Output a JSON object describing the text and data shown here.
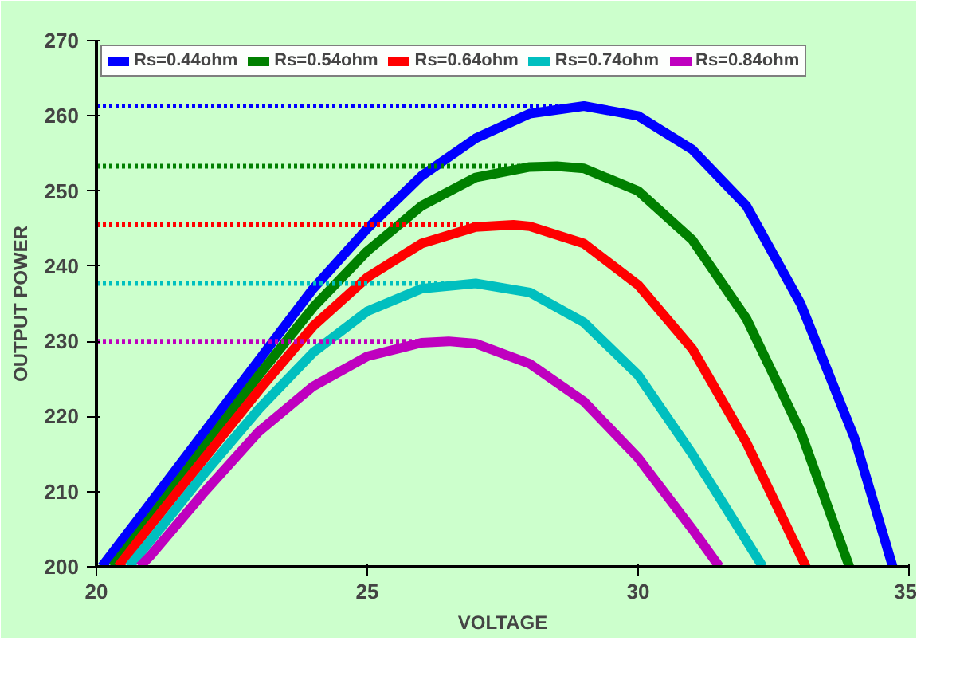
{
  "chart_data": {
    "type": "line",
    "xlabel": "VOLTAGE",
    "ylabel": "OUTPUT POWER",
    "xlim": [
      20,
      35
    ],
    "ylim": [
      200,
      270
    ],
    "xticks": [
      20,
      25,
      30,
      35
    ],
    "yticks": [
      200,
      210,
      220,
      230,
      240,
      250,
      260,
      270
    ],
    "grid": false,
    "legend": "top left",
    "line_style": "solid",
    "marker": "none",
    "series": [
      {
        "name": "Rs=0.44ohm",
        "color": "#0000ff",
        "x": [
          20.1,
          21,
          22,
          23,
          24,
          25,
          26,
          27,
          28,
          29,
          30,
          31,
          32,
          33,
          34,
          34.7
        ],
        "values": [
          200,
          208.5,
          218,
          227.5,
          237,
          245,
          252,
          257,
          260.3,
          261.3,
          260,
          255.5,
          248,
          235,
          217,
          200
        ]
      },
      {
        "name": "Rs=0.54ohm",
        "color": "#008000",
        "x": [
          20.3,
          21,
          22,
          23,
          24,
          25,
          26,
          27,
          28,
          28.5,
          29,
          30,
          31,
          32,
          33,
          33.9
        ],
        "values": [
          200,
          206.5,
          216,
          225.5,
          234.5,
          242,
          248,
          251.8,
          253.2,
          253.3,
          253,
          250,
          243.5,
          233,
          218,
          200
        ]
      },
      {
        "name": "Rs=0.64ohm",
        "color": "#ff0000",
        "x": [
          20.4,
          21,
          22,
          23,
          24,
          25,
          26,
          27,
          27.7,
          28,
          29,
          30,
          31,
          32,
          33.1
        ],
        "values": [
          200,
          205.5,
          214.5,
          223.5,
          232,
          238.5,
          243,
          245.2,
          245.5,
          245.3,
          243,
          237.5,
          229,
          216.5,
          200
        ]
      },
      {
        "name": "Rs=0.74ohm",
        "color": "#00bfbf",
        "x": [
          20.6,
          21,
          22,
          23,
          24,
          25,
          26,
          27,
          28,
          29,
          30,
          31,
          32.3
        ],
        "values": [
          200,
          203.5,
          212.5,
          221,
          228.5,
          234,
          237,
          237.7,
          236.5,
          232.5,
          225.5,
          215,
          200
        ]
      },
      {
        "name": "Rs=0.84ohm",
        "color": "#bf00bf",
        "x": [
          20.8,
          21,
          22,
          23,
          24,
          25,
          26,
          26.5,
          27,
          28,
          29,
          30,
          31,
          31.5
        ],
        "values": [
          200,
          201.5,
          210,
          218,
          224,
          228,
          229.8,
          230,
          229.7,
          227,
          222,
          214.5,
          205,
          200
        ]
      },
      {
        "color": "#0000ff",
        "line_style": "dotted",
        "x": [
          20,
          29
        ],
        "values": [
          261.3,
          261.3
        ]
      },
      {
        "color": "#008000",
        "line_style": "dotted",
        "x": [
          20,
          28.5
        ],
        "values": [
          253.3,
          253.3
        ]
      },
      {
        "color": "#ff0000",
        "line_style": "dotted",
        "x": [
          20,
          27.7
        ],
        "values": [
          245.5,
          245.5
        ]
      },
      {
        "color": "#00bfbf",
        "line_style": "dotted",
        "x": [
          20,
          27
        ],
        "values": [
          237.7,
          237.7
        ]
      },
      {
        "color": "#bf00bf",
        "line_style": "dotted",
        "x": [
          20,
          26.5
        ],
        "values": [
          230,
          230
        ]
      }
    ]
  }
}
